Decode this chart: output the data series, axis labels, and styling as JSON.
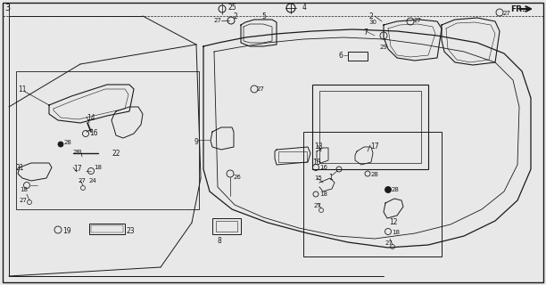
{
  "bg_color": "#e8e8e8",
  "line_color": "#1a1a1a",
  "fig_width": 6.12,
  "fig_height": 3.2,
  "dpi": 100
}
